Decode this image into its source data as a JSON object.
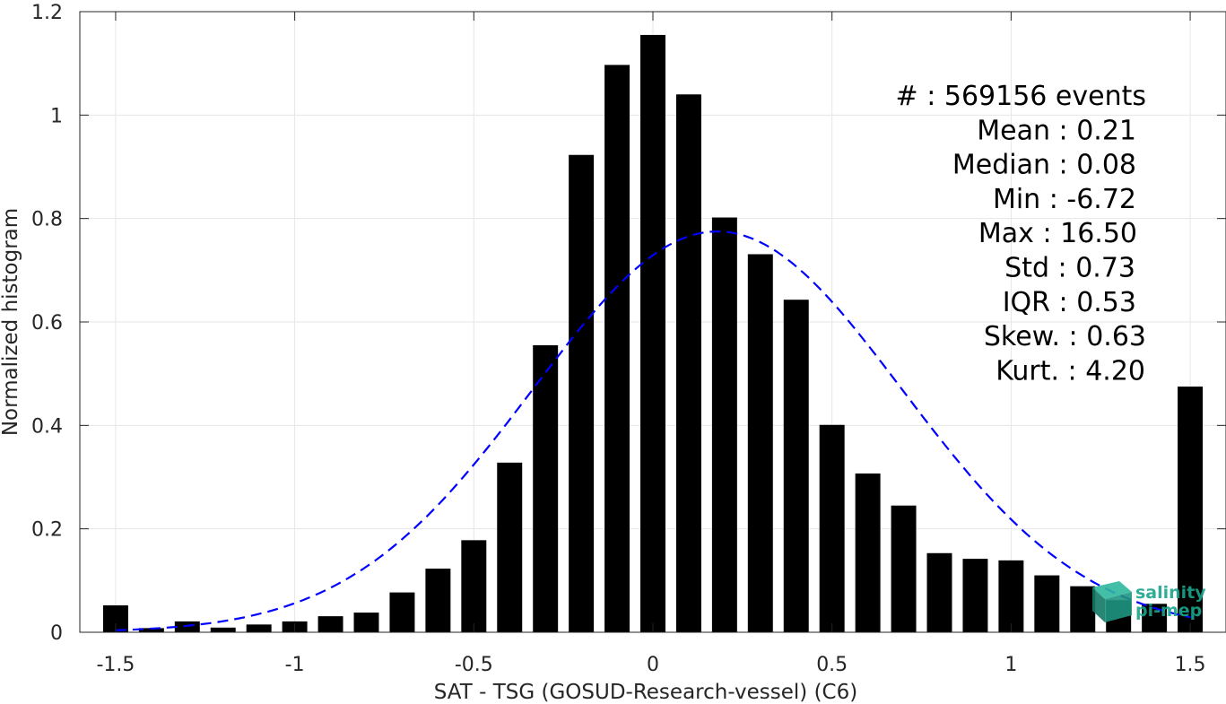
{
  "chart_data": {
    "type": "bar",
    "title": "",
    "xlabel": "SAT - TSG (GOSUD-Research-vessel) (C6)",
    "ylabel": "Normalized histogram",
    "xlim": [
      -1.6,
      1.6
    ],
    "ylim": [
      0,
      1.2
    ],
    "grid": true,
    "xticks": [
      -1.5,
      -1,
      -0.5,
      0,
      0.5,
      1,
      1.5
    ],
    "xtick_labels": [
      "-1.5",
      "-1",
      "-0.5",
      "0",
      "0.5",
      "1",
      "1.5"
    ],
    "yticks": [
      0,
      0.2,
      0.4,
      0.6,
      0.8,
      1,
      1.2
    ],
    "ytick_labels": [
      "0",
      "0.2",
      "0.4",
      "0.6",
      "0.8",
      "1",
      "1.2"
    ],
    "bar_color": "#000000",
    "bar_width": 0.07,
    "x": [
      -1.5,
      -1.4,
      -1.3,
      -1.2,
      -1.1,
      -1.0,
      -0.9,
      -0.8,
      -0.7,
      -0.6,
      -0.5,
      -0.4,
      -0.3,
      -0.2,
      -0.1,
      0.0,
      0.1,
      0.2,
      0.3,
      0.4,
      0.5,
      0.6,
      0.7,
      0.8,
      0.9,
      1.0,
      1.1,
      1.2,
      1.3,
      1.4,
      1.5
    ],
    "values": [
      0.052,
      0.008,
      0.021,
      0.009,
      0.015,
      0.021,
      0.031,
      0.038,
      0.077,
      0.123,
      0.178,
      0.328,
      0.555,
      0.923,
      1.097,
      1.155,
      1.04,
      0.802,
      0.731,
      0.643,
      0.401,
      0.307,
      0.245,
      0.153,
      0.142,
      0.139,
      0.11,
      0.089,
      0.062,
      0.055,
      0.475
    ],
    "fit_curve": {
      "style": "dashed",
      "color": "#0000ff",
      "mean": 0.18,
      "std": 0.515,
      "peak": 0.775,
      "x_range": [
        -1.5,
        1.5
      ]
    }
  },
  "stats": [
    "#  : 569156 events",
    "Mean : 0.21",
    "Median : 0.08",
    "Min : -6.72",
    "Max : 16.50",
    "Std : 0.73",
    "IQR : 0.53",
    "Skew. : 0.63",
    "Kurt. : 4.20"
  ],
  "logo": {
    "line1": "salinity",
    "line2": "pi-mep",
    "color": "#1aa58c"
  }
}
